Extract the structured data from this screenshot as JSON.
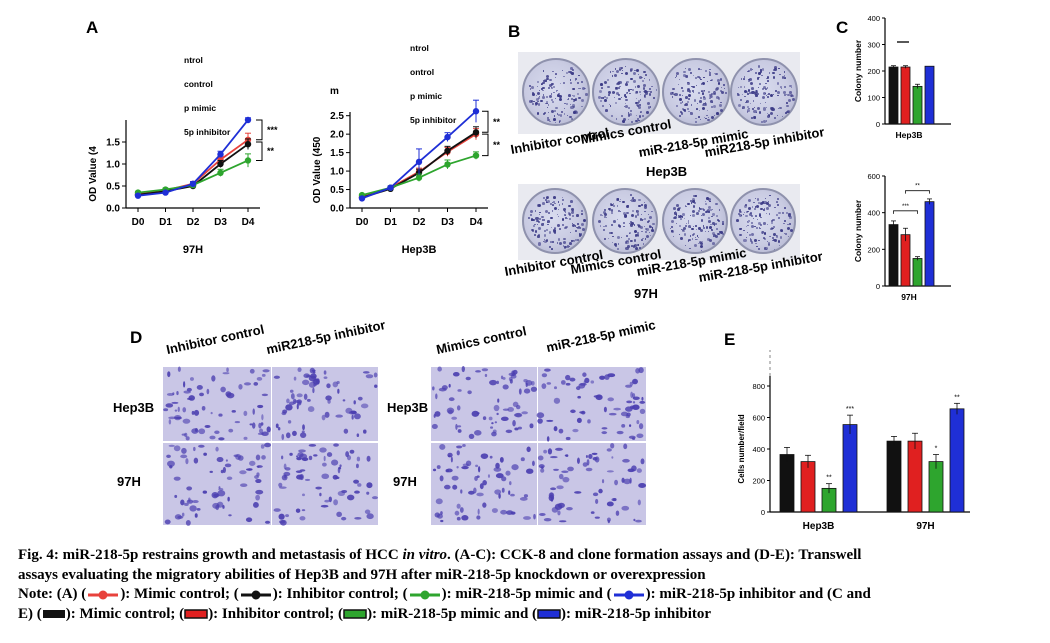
{
  "panels": {
    "A": "A",
    "B": "B",
    "C": "C",
    "D": "D",
    "E": "E"
  },
  "chart_data": [
    {
      "type": "line",
      "panel": "A",
      "title": "97H",
      "ylabel": "OD Value (4",
      "categories": [
        "D0",
        "D1",
        "D2",
        "D3",
        "D4"
      ],
      "ylim": [
        0,
        2.0
      ],
      "yticks": [
        "0.0",
        "0.5",
        "1.0",
        "1.5"
      ],
      "legend": [
        "ntrol",
        "control",
        "p mimic",
        "5p inhibitor"
      ],
      "series": [
        {
          "color": "#e8423c",
          "values": [
            0.32,
            0.4,
            0.55,
            1.1,
            1.55
          ],
          "err": [
            0.03,
            0.03,
            0.05,
            0.08,
            0.15
          ]
        },
        {
          "color": "#111111",
          "values": [
            0.3,
            0.38,
            0.5,
            1.0,
            1.45
          ],
          "err": [
            0.03,
            0.03,
            0.05,
            0.08,
            0.12
          ]
        },
        {
          "color": "#2ea52e",
          "values": [
            0.35,
            0.42,
            0.52,
            0.8,
            1.08
          ],
          "err": [
            0.03,
            0.03,
            0.05,
            0.08,
            0.15
          ]
        },
        {
          "color": "#1f2fd6",
          "values": [
            0.28,
            0.35,
            0.55,
            1.22,
            2.0
          ],
          "err": [
            0.03,
            0.03,
            0.05,
            0.07,
            0.05
          ]
        }
      ],
      "sig": [
        "***",
        "**"
      ]
    },
    {
      "type": "line",
      "panel": "A",
      "title": "Hep3B",
      "ylabel": "OD Value (450",
      "ytitle_extra": "m",
      "categories": [
        "D0",
        "D1",
        "D2",
        "D3",
        "D4"
      ],
      "ylim": [
        0,
        2.6
      ],
      "yticks": [
        "0.0",
        "0.5",
        "1.0",
        "1.5",
        "2.0",
        "2.5"
      ],
      "legend": [
        "ntrol",
        "ontrol",
        "p mimic",
        "5p inhibitor"
      ],
      "series": [
        {
          "color": "#e8423c",
          "values": [
            0.3,
            0.55,
            0.98,
            1.52,
            2.0
          ],
          "err": [
            0.03,
            0.04,
            0.1,
            0.12,
            0.15
          ]
        },
        {
          "color": "#111111",
          "values": [
            0.28,
            0.52,
            0.95,
            1.55,
            2.05
          ],
          "err": [
            0.03,
            0.04,
            0.1,
            0.12,
            0.15
          ]
        },
        {
          "color": "#2ea52e",
          "values": [
            0.35,
            0.55,
            0.82,
            1.18,
            1.42
          ],
          "err": [
            0.03,
            0.04,
            0.1,
            0.12,
            0.1
          ]
        },
        {
          "color": "#1f2fd6",
          "values": [
            0.26,
            0.55,
            1.25,
            1.92,
            2.62
          ],
          "err": [
            0.03,
            0.04,
            0.35,
            0.12,
            0.3
          ]
        }
      ],
      "sig": [
        "**",
        "**"
      ]
    },
    {
      "type": "bar",
      "panel": "C",
      "xlabel": "Hep3B",
      "ylabel": "Colony number",
      "ylim": [
        0,
        400
      ],
      "yticks": [
        "0",
        "100",
        "200",
        "300",
        "400"
      ],
      "colors": [
        "#111111",
        "#e02020",
        "#2ea52e",
        "#1f2fd6"
      ],
      "values": [
        215,
        215,
        142,
        218
      ],
      "err": [
        5,
        5,
        8,
        0
      ]
    },
    {
      "type": "bar",
      "panel": "C",
      "xlabel": "97H",
      "ylabel": "Colony number",
      "ylim": [
        0,
        600
      ],
      "yticks": [
        "0",
        "200",
        "400",
        "600"
      ],
      "colors": [
        "#111111",
        "#e02020",
        "#2ea52e",
        "#1f2fd6"
      ],
      "values": [
        335,
        280,
        150,
        460
      ],
      "err": [
        20,
        35,
        10,
        15
      ],
      "sig": [
        "***",
        "**"
      ]
    },
    {
      "type": "bar",
      "panel": "E",
      "ylabel": "Cells number/field",
      "ylim": [
        0,
        800
      ],
      "yticks": [
        "0",
        "200",
        "400",
        "600",
        "800"
      ],
      "categories": [
        "Hep3B",
        "97H"
      ],
      "colors": [
        "#111111",
        "#e02020",
        "#2ea52e",
        "#1f2fd6"
      ],
      "groups": [
        {
          "values": [
            365,
            320,
            150,
            555
          ],
          "err": [
            45,
            40,
            30,
            60
          ],
          "sig": [
            "",
            "",
            "**",
            "***"
          ]
        },
        {
          "values": [
            450,
            450,
            320,
            655
          ],
          "err": [
            30,
            50,
            45,
            35
          ],
          "sig": [
            "",
            "",
            "*",
            "**"
          ]
        }
      ]
    }
  ],
  "panel_b": {
    "hep3b_labels": [
      "Inhibitor control",
      "Mimics control",
      "miR-218-5p mimic",
      "miR218-5p inhibitor"
    ],
    "hep3b_name": "Hep3B",
    "h97_labels": [
      "Inhibitor control",
      "Mimics control",
      "miR-218-5p mimic",
      "miR-218-5p inhibitor"
    ],
    "h97_name": "97H",
    "scale": "1cm"
  },
  "panel_d": {
    "cols_left": [
      "Inhibitor control",
      "miR218-5p inhibitor"
    ],
    "cols_right": [
      "Mimics control",
      "miR-218-5p mimic"
    ],
    "rows": [
      "Hep3B",
      "97H"
    ],
    "scale": "100μm"
  },
  "caption": {
    "line1": "Fig. 4: miR-218-5p restrains growth and metastasis of HCC ",
    "line1_italic": "in vitro",
    "line1_rest": ". (A-C): CCK-8 and clone formation assays and (D-E): Transwell",
    "line2": "assays evaluating the migratory abilities of Hep3B and 97H after miR-218-5p knockdown or overexpression",
    "note_a": "Note: (A) (",
    "note_b": "): Mimic control; (",
    "note_c": "): Inhibitor control; (",
    "note_d": "): miR-218-5p mimic and (",
    "note_e": "): miR-218-5p inhibitor and (C and",
    "note_f": "E) (",
    "note_g": "): Mimic control; (",
    "note_h": "): Inhibitor control; (",
    "note_i": "): miR-218-5p mimic and (",
    "note_j": "): miR-218-5p inhibitor",
    "swatch_colors": [
      "#e8423c",
      "#111111",
      "#2ea52e",
      "#1f2fd6"
    ]
  }
}
